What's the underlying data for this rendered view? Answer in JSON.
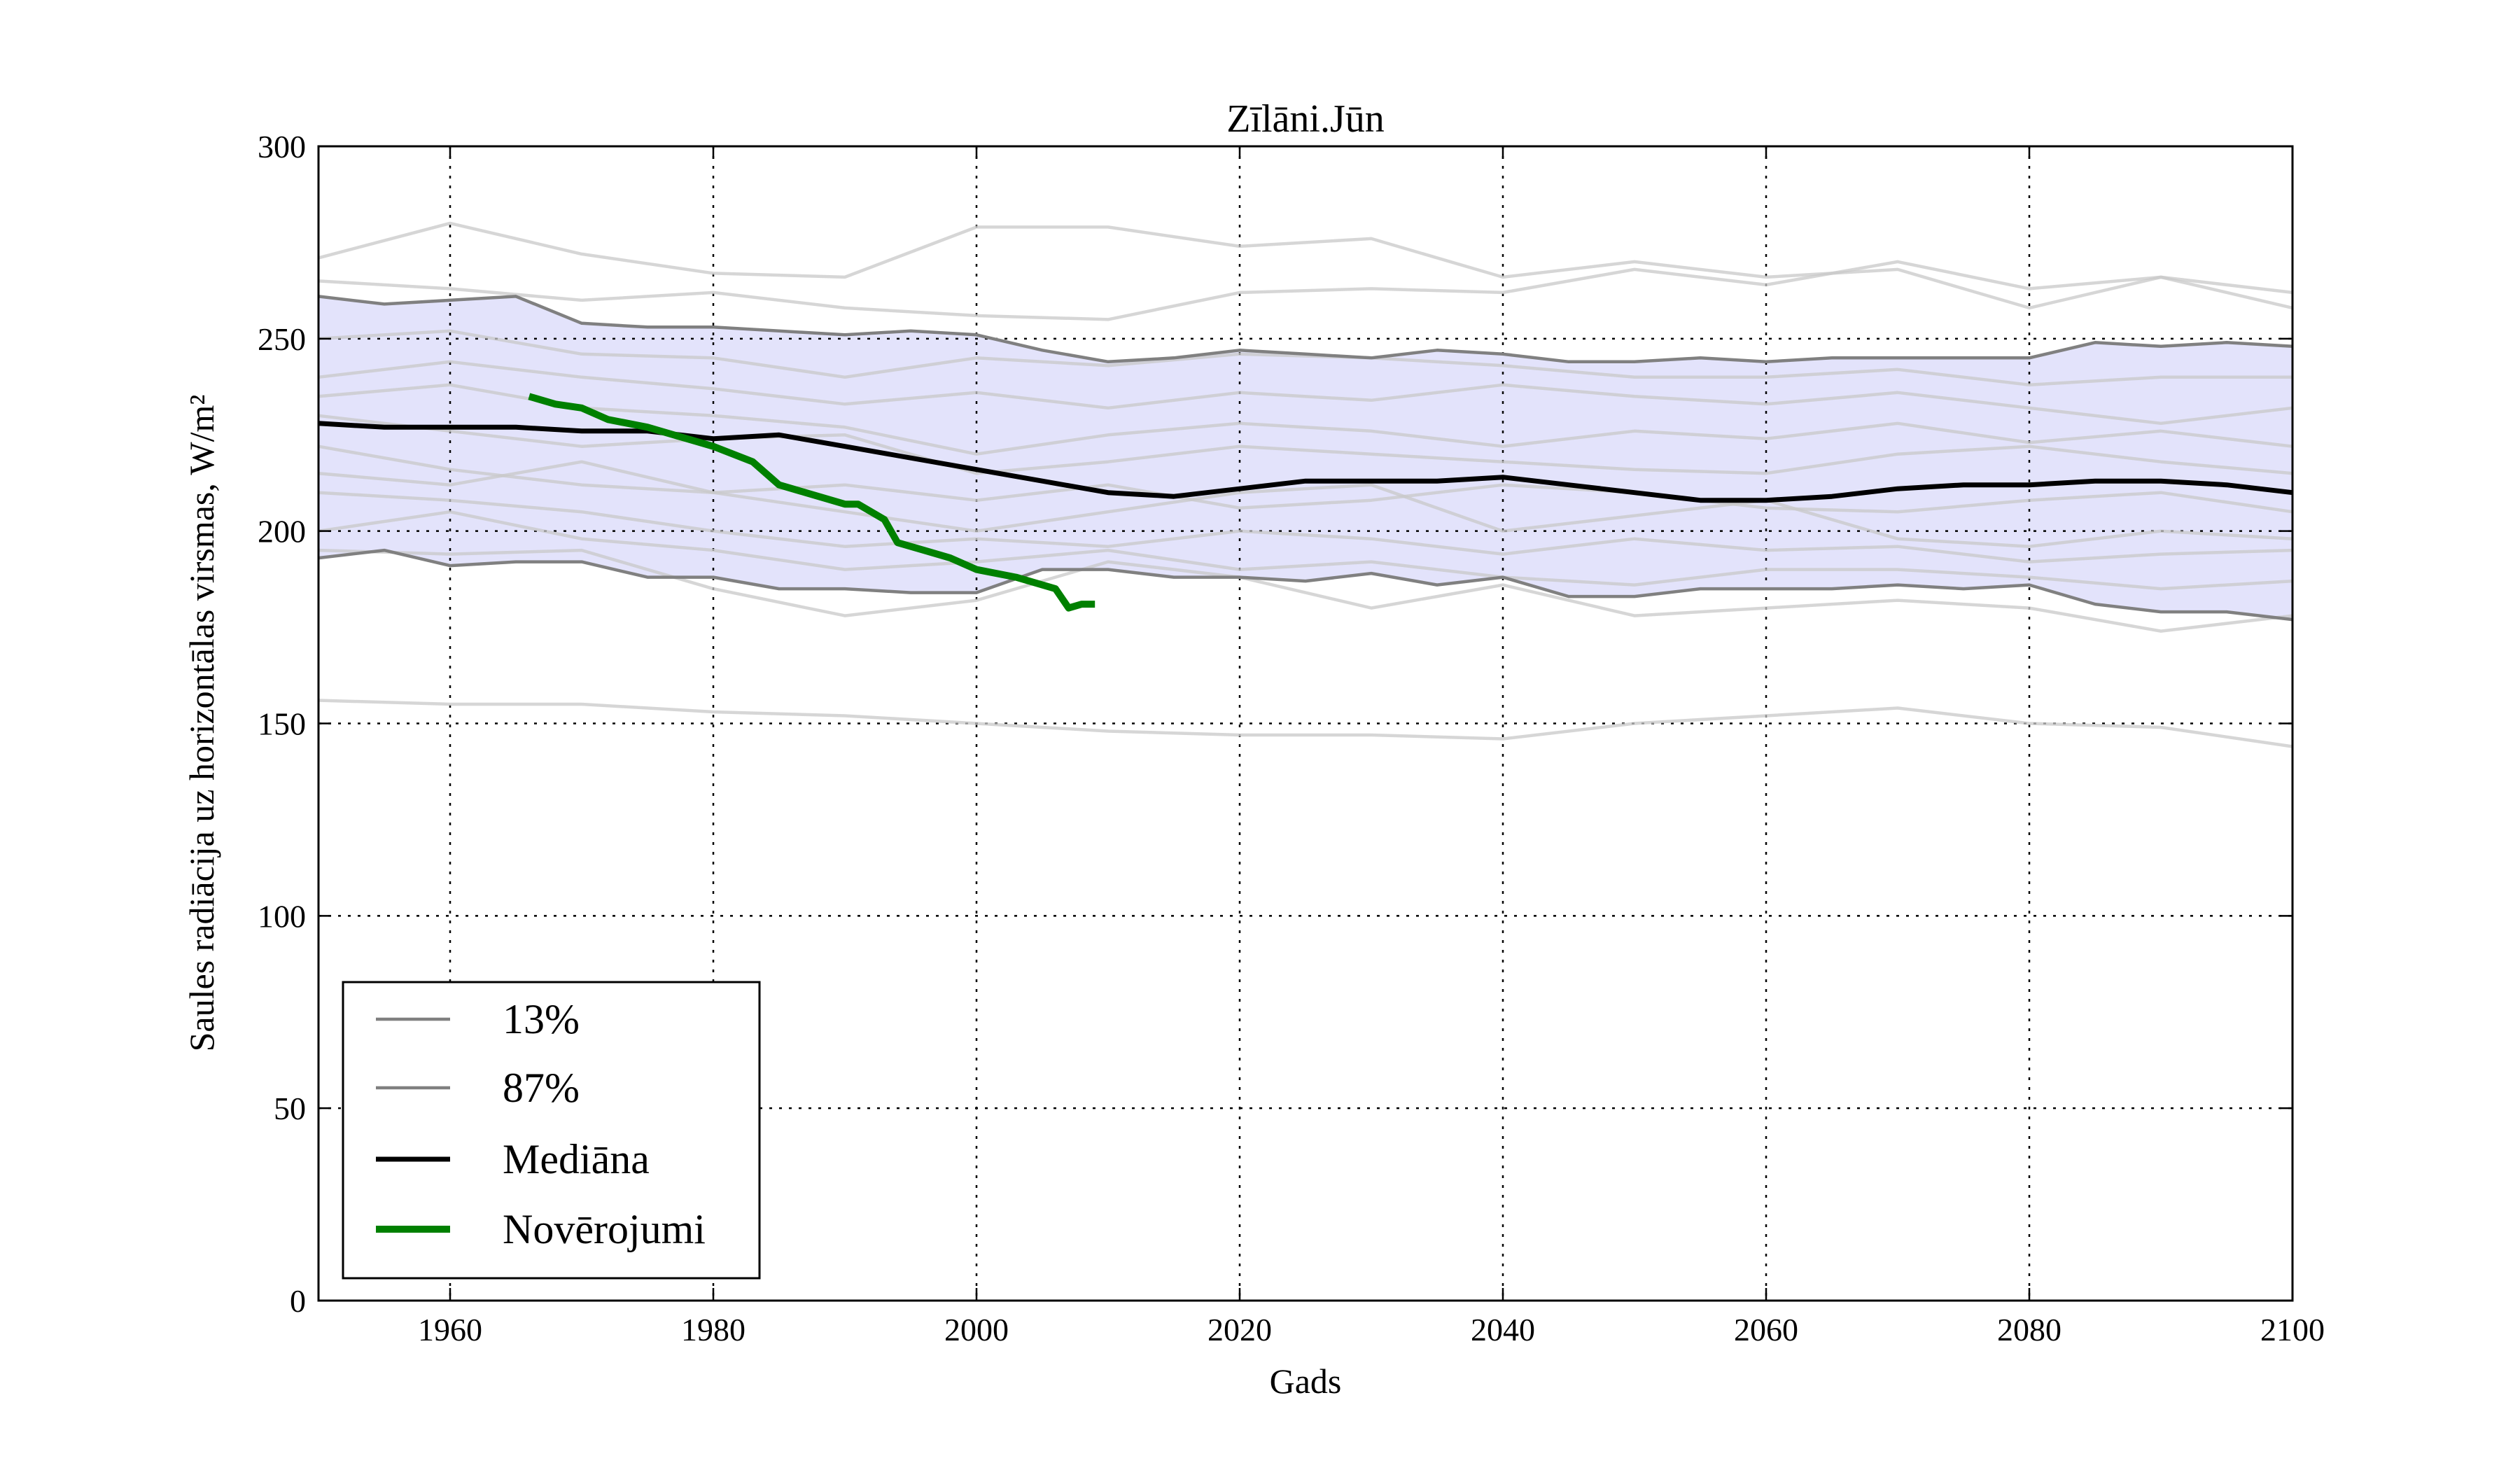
{
  "chart_data": {
    "type": "line",
    "title": "Zīlāni.Jūn",
    "xlabel": "Gads",
    "ylabel": "Saules radiācija uz horizontālas virsmas, W/m²",
    "xlim": [
      1950,
      2100
    ],
    "ylim": [
      0,
      300
    ],
    "xticks": [
      1960,
      1980,
      2000,
      2020,
      2040,
      2060,
      2080,
      2100
    ],
    "yticks": [
      0,
      50,
      100,
      150,
      200,
      250,
      300
    ],
    "grid": true,
    "legend_position": "lower-left",
    "band_color": "#e3e3fb",
    "series": [
      {
        "name": "13%",
        "color": "#808080",
        "x": [
          1950,
          1955,
          1960,
          1965,
          1970,
          1975,
          1980,
          1985,
          1990,
          1995,
          2000,
          2005,
          2010,
          2015,
          2020,
          2025,
          2030,
          2035,
          2040,
          2045,
          2050,
          2055,
          2060,
          2065,
          2070,
          2075,
          2080,
          2085,
          2090,
          2095,
          2100
        ],
        "y": [
          193,
          195,
          191,
          192,
          192,
          188,
          188,
          185,
          185,
          184,
          184,
          190,
          190,
          188,
          188,
          187,
          189,
          186,
          188,
          183,
          183,
          185,
          185,
          185,
          186,
          185,
          186,
          181,
          179,
          179,
          177
        ]
      },
      {
        "name": "87%",
        "color": "#808080",
        "x": [
          1950,
          1955,
          1960,
          1965,
          1970,
          1975,
          1980,
          1985,
          1990,
          1995,
          2000,
          2005,
          2010,
          2015,
          2020,
          2025,
          2030,
          2035,
          2040,
          2045,
          2050,
          2055,
          2060,
          2065,
          2070,
          2075,
          2080,
          2085,
          2090,
          2095,
          2100
        ],
        "y": [
          261,
          259,
          260,
          261,
          254,
          253,
          253,
          252,
          251,
          252,
          251,
          247,
          244,
          245,
          247,
          246,
          245,
          247,
          246,
          244,
          244,
          245,
          244,
          245,
          245,
          245,
          245,
          249,
          248,
          249,
          248
        ]
      },
      {
        "name": "Mediāna",
        "color": "#000000",
        "x": [
          1950,
          1955,
          1960,
          1965,
          1970,
          1975,
          1980,
          1985,
          1990,
          1995,
          2000,
          2005,
          2010,
          2015,
          2020,
          2025,
          2030,
          2035,
          2040,
          2045,
          2050,
          2055,
          2060,
          2065,
          2070,
          2075,
          2080,
          2085,
          2090,
          2095,
          2100
        ],
        "y": [
          228,
          227,
          227,
          227,
          226,
          226,
          224,
          225,
          222,
          219,
          216,
          213,
          210,
          209,
          211,
          213,
          213,
          213,
          214,
          212,
          210,
          208,
          208,
          209,
          211,
          212,
          212,
          213,
          213,
          212,
          210
        ]
      },
      {
        "name": "Novērojumi",
        "color": "#008000",
        "x": [
          1966,
          1968,
          1970,
          1972,
          1975,
          1977,
          1980,
          1983,
          1985,
          1987,
          1990,
          1991,
          1993,
          1994,
          1996,
          1998,
          2000,
          2003,
          2006,
          2007,
          2008,
          2009
        ],
        "y": [
          235,
          233,
          232,
          229,
          227,
          225,
          222,
          218,
          212,
          210,
          207,
          207,
          203,
          197,
          195,
          193,
          190,
          188,
          185,
          180,
          181,
          181
        ]
      }
    ],
    "ensemble": {
      "color": "#c8c8c8",
      "x": [
        1950,
        1960,
        1970,
        1980,
        1990,
        2000,
        2010,
        2020,
        2030,
        2040,
        2050,
        2060,
        2070,
        2080,
        2090,
        2100
      ],
      "members": [
        [
          271,
          280,
          272,
          267,
          266,
          279,
          279,
          274,
          276,
          266,
          270,
          266,
          268,
          258,
          266,
          258
        ],
        [
          265,
          263,
          260,
          262,
          258,
          256,
          255,
          262,
          263,
          262,
          268,
          264,
          270,
          263,
          266,
          262
        ],
        [
          250,
          252,
          246,
          245,
          240,
          245,
          243,
          246,
          245,
          243,
          240,
          240,
          242,
          238,
          240,
          240
        ],
        [
          240,
          244,
          240,
          237,
          233,
          236,
          232,
          236,
          234,
          238,
          235,
          233,
          236,
          232,
          228,
          232
        ],
        [
          235,
          238,
          232,
          230,
          227,
          220,
          225,
          228,
          226,
          222,
          226,
          224,
          228,
          223,
          226,
          222
        ],
        [
          230,
          226,
          222,
          224,
          225,
          215,
          218,
          222,
          220,
          218,
          216,
          215,
          220,
          222,
          218,
          215
        ],
        [
          222,
          216,
          212,
          210,
          212,
          208,
          212,
          206,
          208,
          212,
          210,
          206,
          205,
          208,
          210,
          205
        ],
        [
          215,
          212,
          218,
          210,
          205,
          200,
          205,
          210,
          212,
          200,
          204,
          208,
          198,
          196,
          200,
          198
        ],
        [
          210,
          208,
          205,
          200,
          196,
          198,
          196,
          200,
          198,
          194,
          198,
          195,
          196,
          192,
          194,
          195
        ],
        [
          200,
          205,
          198,
          195,
          190,
          192,
          195,
          190,
          192,
          188,
          186,
          190,
          190,
          188,
          185,
          187
        ],
        [
          195,
          194,
          195,
          185,
          178,
          182,
          192,
          188,
          180,
          186,
          178,
          180,
          182,
          180,
          174,
          178
        ],
        [
          156,
          155,
          155,
          153,
          152,
          150,
          148,
          147,
          147,
          146,
          150,
          152,
          154,
          150,
          149,
          144
        ]
      ]
    }
  }
}
